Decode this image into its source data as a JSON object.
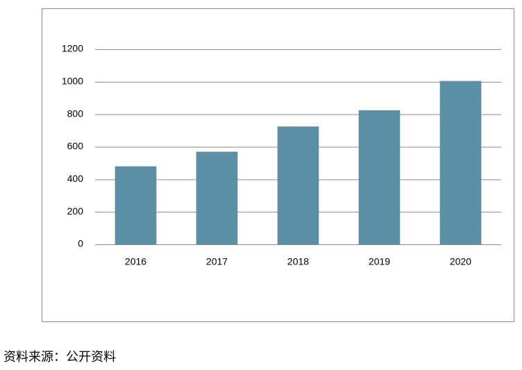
{
  "chart_data": {
    "type": "bar",
    "categories": [
      "2016",
      "2017",
      "2018",
      "2019",
      "2020"
    ],
    "values": [
      480,
      570,
      725,
      825,
      1005
    ],
    "color": "#5b8fa6",
    "ylim": [
      0,
      1200
    ],
    "yticks": [
      0,
      200,
      400,
      600,
      800,
      1000,
      1200
    ],
    "grid": true
  },
  "source": "资料来源：公开资料"
}
